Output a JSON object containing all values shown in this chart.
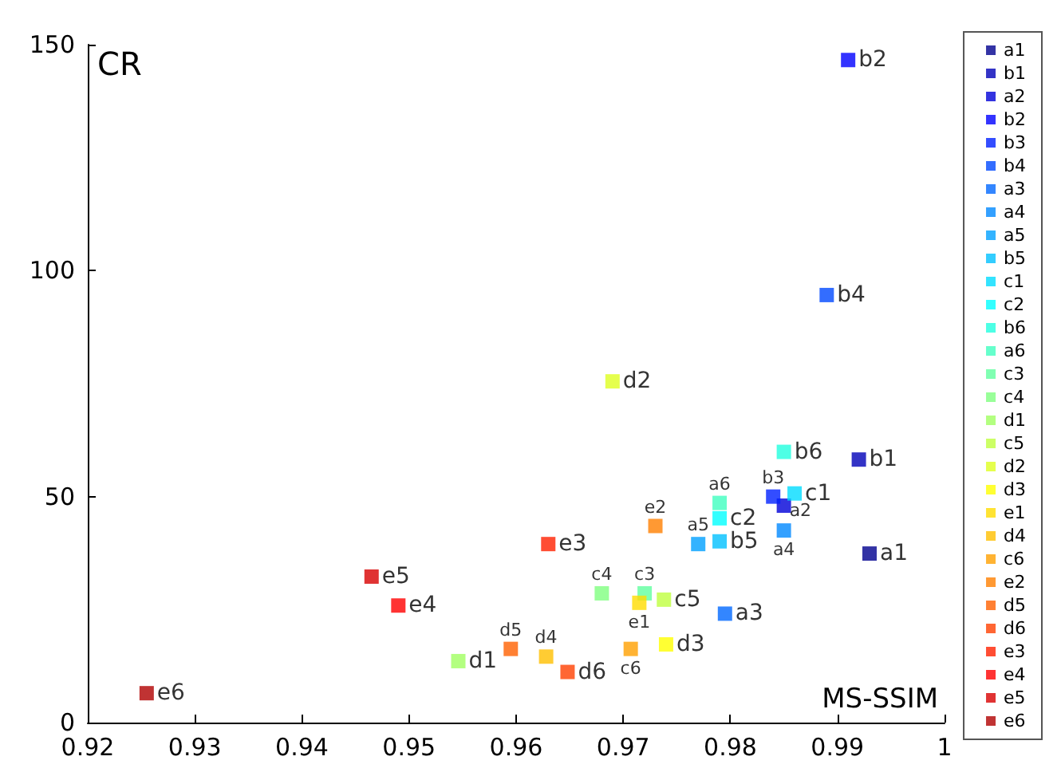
{
  "chart_data": {
    "type": "scatter",
    "xlabel": "MS-SSIM",
    "ylabel": "CR",
    "xlim": [
      0.92,
      1.0
    ],
    "ylim": [
      0,
      150
    ],
    "xticks": [
      0.92,
      0.93,
      0.94,
      0.95,
      0.96,
      0.97,
      0.98,
      0.99,
      {
        "value": 1.0,
        "label": "1"
      }
    ],
    "yticks": [
      0,
      50,
      100,
      150
    ],
    "grid": false,
    "legend": "right",
    "marker": "square",
    "data_labels": "name",
    "series": [
      {
        "name": "a1",
        "color": "#00008f",
        "x": [
          0.993
        ],
        "values": [
          37.4
        ]
      },
      {
        "name": "b1",
        "color": "#0000b8",
        "x": [
          0.992
        ],
        "values": [
          58.2
        ]
      },
      {
        "name": "a2",
        "color": "#0000d8",
        "x": [
          0.985
        ],
        "values": [
          48
        ]
      },
      {
        "name": "b2",
        "color": "#0000ff",
        "x": [
          0.991
        ],
        "values": [
          146.6
        ]
      },
      {
        "name": "b3",
        "color": "#0020ff",
        "x": [
          0.984
        ],
        "values": [
          50
        ]
      },
      {
        "name": "b4",
        "color": "#0048ff",
        "x": [
          0.989
        ],
        "values": [
          94.6
        ]
      },
      {
        "name": "a3",
        "color": "#0068ff",
        "x": [
          0.9795
        ],
        "values": [
          24.1
        ]
      },
      {
        "name": "a4",
        "color": "#0088ff",
        "x": [
          0.985
        ],
        "values": [
          42.5
        ]
      },
      {
        "name": "a5",
        "color": "#00a0ff",
        "x": [
          0.977
        ],
        "values": [
          39.5
        ]
      },
      {
        "name": "b5",
        "color": "#00c0ff",
        "x": [
          0.979
        ],
        "values": [
          40.1
        ]
      },
      {
        "name": "c1",
        "color": "#00dcff",
        "x": [
          0.986
        ],
        "values": [
          50.7
        ]
      },
      {
        "name": "c2",
        "color": "#00ffff",
        "x": [
          0.979
        ],
        "values": [
          45.2
        ]
      },
      {
        "name": "b6",
        "color": "#20ffdf",
        "x": [
          0.985
        ],
        "values": [
          59.9
        ]
      },
      {
        "name": "a6",
        "color": "#40ffbf",
        "x": [
          0.979
        ],
        "values": [
          48.6
        ]
      },
      {
        "name": "c3",
        "color": "#60ff9f",
        "x": [
          0.972
        ],
        "values": [
          28.6
        ]
      },
      {
        "name": "c4",
        "color": "#80ff80",
        "x": [
          0.968
        ],
        "values": [
          28.6
        ]
      },
      {
        "name": "d1",
        "color": "#a0ff60",
        "x": [
          0.9546
        ],
        "values": [
          13.6
        ]
      },
      {
        "name": "c5",
        "color": "#bfff40",
        "x": [
          0.9738
        ],
        "values": [
          27.2
        ]
      },
      {
        "name": "d2",
        "color": "#dfff20",
        "x": [
          0.969
        ],
        "values": [
          75.5
        ]
      },
      {
        "name": "d3",
        "color": "#ffff00",
        "x": [
          0.974
        ],
        "values": [
          17.3
        ]
      },
      {
        "name": "e1",
        "color": "#ffdc00",
        "x": [
          0.9715
        ],
        "values": [
          26.5
        ]
      },
      {
        "name": "d4",
        "color": "#ffbf00",
        "x": [
          0.9628
        ],
        "values": [
          14.6
        ]
      },
      {
        "name": "c6",
        "color": "#ffa000",
        "x": [
          0.9707
        ],
        "values": [
          16.3
        ]
      },
      {
        "name": "e2",
        "color": "#ff8000",
        "x": [
          0.973
        ],
        "values": [
          43.5
        ]
      },
      {
        "name": "d5",
        "color": "#ff6000",
        "x": [
          0.9595
        ],
        "values": [
          16.3
        ]
      },
      {
        "name": "d6",
        "color": "#ff4000",
        "x": [
          0.9648
        ],
        "values": [
          11.2
        ]
      },
      {
        "name": "e3",
        "color": "#ff2000",
        "x": [
          0.963
        ],
        "values": [
          39.5
        ]
      },
      {
        "name": "e4",
        "color": "#ff0000",
        "x": [
          0.949
        ],
        "values": [
          25.9
        ]
      },
      {
        "name": "e5",
        "color": "#d80000",
        "x": [
          0.9465
        ],
        "values": [
          32.3
        ]
      },
      {
        "name": "e6",
        "color": "#b00000",
        "x": [
          0.9255
        ],
        "values": [
          6.5
        ]
      }
    ]
  }
}
